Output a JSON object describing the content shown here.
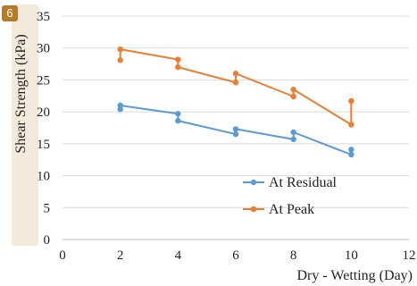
{
  "badge": "6",
  "chart_data": {
    "type": "line",
    "xlabel": "Dry - Wetting (Day)",
    "ylabel": "Shear Strength (kPa)",
    "xlim": [
      0,
      12
    ],
    "ylim": [
      0,
      35
    ],
    "xticks": [
      0,
      2,
      4,
      6,
      8,
      10,
      12
    ],
    "yticks": [
      0,
      5,
      10,
      15,
      20,
      25,
      30,
      35
    ],
    "grid": "horizontal",
    "legend_position": "center-right",
    "series": [
      {
        "name": "At Residual",
        "color": "#5b9bd5",
        "points": [
          [
            2,
            20.4
          ],
          [
            2,
            21.0
          ],
          [
            4,
            19.7
          ],
          [
            4,
            18.6
          ],
          [
            6,
            16.5
          ],
          [
            6,
            17.3
          ],
          [
            8,
            15.7
          ],
          [
            8,
            16.8
          ],
          [
            10,
            13.3
          ],
          [
            10,
            14.1
          ]
        ]
      },
      {
        "name": "At Peak",
        "color": "#ed7d31",
        "points": [
          [
            2,
            28.1
          ],
          [
            2,
            29.8
          ],
          [
            4,
            28.2
          ],
          [
            4,
            27.0
          ],
          [
            6,
            24.6
          ],
          [
            6,
            26.0
          ],
          [
            8,
            22.4
          ],
          [
            8,
            23.5
          ],
          [
            10,
            18.0
          ],
          [
            10,
            21.7
          ]
        ]
      }
    ]
  }
}
